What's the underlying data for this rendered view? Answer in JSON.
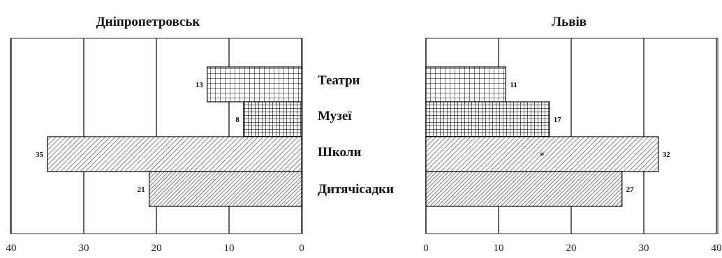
{
  "chart_data": [
    {
      "type": "bar",
      "orientation": "horizontal",
      "direction": "right-to-left",
      "title": "Дніпропетровськ",
      "categories": [
        "Театри",
        "Музеї",
        "Школи",
        "Дитячісадки"
      ],
      "values": [
        13,
        8,
        35,
        21
      ],
      "xlim": [
        0,
        40
      ],
      "xticks": [
        40,
        30,
        20,
        10,
        0
      ],
      "grid": true
    },
    {
      "type": "bar",
      "orientation": "horizontal",
      "direction": "left-to-right",
      "title": "Львів",
      "categories": [
        "Театри",
        "Музеї",
        "Школи",
        "Дитячісадки"
      ],
      "values": [
        11,
        17,
        32,
        27
      ],
      "xlim": [
        0,
        40
      ],
      "xticks": [
        0,
        10,
        20,
        30,
        40
      ],
      "grid": true,
      "annotations": [
        "*"
      ]
    }
  ],
  "patterns": [
    "grid-fine",
    "grid-dense",
    "diagonal-hatch",
    "diagonal-hatch-dense"
  ]
}
